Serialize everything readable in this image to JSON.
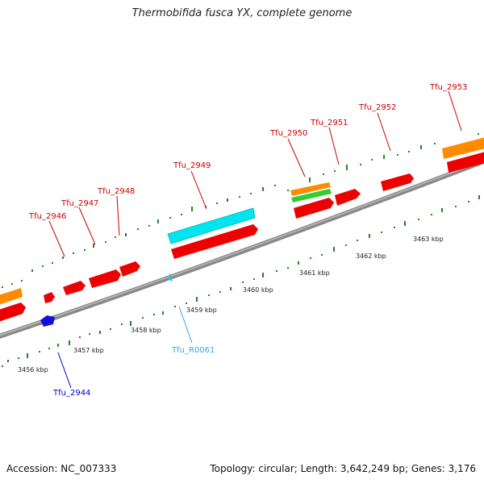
{
  "title": "Thermobifida fusca YX, complete genome",
  "footer": {
    "accession": "Accession: NC_007333",
    "summary": "Topology: circular; Length: 3,642,249 bp; Genes: 3,176"
  },
  "colors": {
    "backbone": "#888888",
    "forward_gene": "#ee0000",
    "rrna_trna": "#00e5ee",
    "orange_feature": "#ff8c00",
    "green_feature": "#33cc33",
    "reverse_gene": "#1010dd",
    "reverse_rna": "#33bbee",
    "tick": "#1a8a1a",
    "label_red": "#cc0000",
    "label_blue": "#0000cc",
    "label_cyan": "#33aadd"
  },
  "scale_labels": [
    "3456 kbp",
    "3457 kbp",
    "3458 kbp",
    "3459 kbp",
    "3460 kbp",
    "3461 kbp",
    "3462 kbp",
    "3463 kbp"
  ],
  "forward_labels": [
    "Tfu_2946",
    "Tfu_2947",
    "Tfu_2948",
    "Tfu_2949",
    "Tfu_2950",
    "Tfu_2951",
    "Tfu_2952",
    "Tfu_2953"
  ],
  "reverse_labels": [
    "Tfu_2944",
    "Tfu_R0061"
  ]
}
